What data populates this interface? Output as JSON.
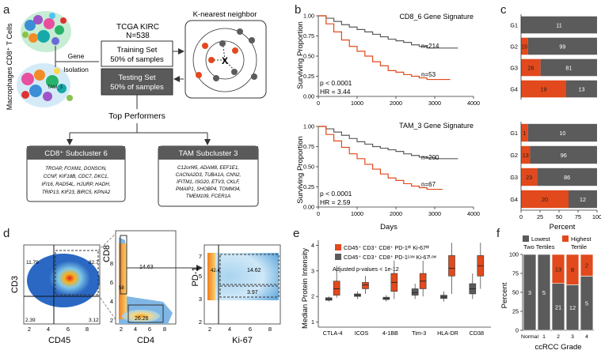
{
  "panel_letters": [
    "a",
    "b",
    "c",
    "d",
    "e",
    "f"
  ],
  "panel_a": {
    "cells_label": "CD8⁺ T Cells",
    "macrophages_label": "Macrophages",
    "tam3_label": "TAM_3",
    "gene_isolation": [
      "Gene",
      "Isolation"
    ],
    "dataset_title": "TCGA KIRC",
    "dataset_n": "N=538",
    "training": [
      "Training Set",
      "50% of samples"
    ],
    "testing": [
      "Testing Set",
      "50% of samples"
    ],
    "knn_title": "K-nearest neighbor",
    "knn_x": "X",
    "top_performers": "Top Performers",
    "cd8_box": {
      "title": "CD8⁺ Subcluster 6",
      "genes": [
        "TROAP, FOXM1, DONSON,",
        "CCNF, KIF18B, CDC7, DKC1,",
        "IFI16, RAD54L, HJURP, HADH,",
        "TRIP13, KIF23, BIRC5, KPNA2"
      ]
    },
    "tam_box": {
      "title": "TAM Subcluster 3",
      "genes": [
        "C12orf45, ADAM8, EEF1E1,",
        "CACNA2D3, TUBA1A, CNN2,",
        "IFITM1, ISG20, ETV3, CKLF,",
        "PMAIP1, SHOBP4, TOMM34,",
        "TMEM109, FCER1A"
      ]
    }
  },
  "panel_b": {
    "ylabel": "Surviving Proportion",
    "xlabel": "Days",
    "plots": [
      {
        "title": "CD8_6 Gene Signature",
        "n_high": "n=214",
        "n_low": "n=53",
        "p": "p < 0.0001",
        "hr": "HR = 3.44"
      },
      {
        "title": "TAM_3 Gene Signature",
        "n_high": "n=200",
        "n_low": "n=67",
        "p": "p < 0.0001",
        "hr": "HR = 2.59"
      }
    ]
  },
  "panel_c": {
    "xlabel": "Percent"
  },
  "panel_d": {
    "plot1": {
      "ylabel": "CD3",
      "xlabel": "CD45",
      "q_tl": "11.79",
      "q_tr": "82.7",
      "q_bl": "2.39",
      "q_br": "3.12"
    },
    "plot2": {
      "ylabel": "CD8",
      "xlabel": "CD4",
      "g_top": "14.63",
      "g_bot": "26.26",
      "g_left": "58"
    },
    "plot3": {
      "ylabel": "PD-1",
      "xlabel": "Ki-67",
      "g_top": "14.62",
      "g_bot": "3.97",
      "g_left": "42.4"
    }
  },
  "panel_e": {
    "ylabel": "Median Protein Intensity",
    "legend": [
      "CD45⁺ CD3⁺ CD8⁺ PD-1ᴴⁱ Ki-67ᴴⁱ",
      "CD45⁺ CD3⁺ CD8⁺ PD-1ᴸᵒʷ Ki-67ᴸᵒʷ"
    ],
    "adj": "Adjusted p-values < 1e-12"
  },
  "panel_f": {
    "legend": [
      "Lowest",
      "Two Tertiles",
      "Highest",
      "Tertile"
    ],
    "ylabel": "Percent",
    "xlabel": "ccRCC Grade"
  },
  "colors": {
    "orange": "#E2491C",
    "gray": "#5B5B5B",
    "light": "#8C8C8C"
  },
  "chart_data": [
    {
      "type": "line",
      "title": "CD8_6 Gene Signature",
      "xlabel": "Days",
      "ylabel": "Surviving Proportion",
      "xlim": [
        0,
        4000
      ],
      "ylim": [
        0,
        1
      ],
      "xticks": [
        0,
        1000,
        2000,
        3000,
        4000
      ],
      "yticks": [
        "0.00",
        "0.25",
        "0.50",
        "0.75",
        "1.00"
      ],
      "series": [
        {
          "name": "high survival (n=214)",
          "color": "#5B5B5B",
          "x": [
            0,
            200,
            400,
            600,
            800,
            1000,
            1200,
            1400,
            1600,
            1800,
            2000,
            2200,
            2400,
            2600,
            2800,
            3000,
            3200,
            3400,
            3600
          ],
          "y": [
            1.0,
            0.97,
            0.93,
            0.89,
            0.86,
            0.83,
            0.8,
            0.77,
            0.74,
            0.71,
            0.69,
            0.67,
            0.64,
            0.62,
            0.6,
            0.6,
            0.6,
            0.6,
            0.6
          ]
        },
        {
          "name": "low survival (n=53)",
          "color": "#E2491C",
          "x": [
            0,
            200,
            400,
            600,
            800,
            1000,
            1200,
            1400,
            1600,
            1800,
            2000,
            2200,
            2400,
            2600,
            2800,
            3000,
            3200,
            3400
          ],
          "y": [
            1.0,
            0.9,
            0.8,
            0.7,
            0.62,
            0.56,
            0.5,
            0.43,
            0.38,
            0.32,
            0.3,
            0.27,
            0.25,
            0.23,
            0.21,
            0.21,
            0.21,
            0.21
          ]
        }
      ]
    },
    {
      "type": "line",
      "title": "TAM_3 Gene Signature",
      "xlabel": "Days",
      "ylabel": "Surviving Proportion",
      "xlim": [
        0,
        4000
      ],
      "ylim": [
        0,
        1
      ],
      "xticks": [
        0,
        1000,
        2000,
        3000,
        4000
      ],
      "yticks": [
        "0.00",
        "0.25",
        "0.50",
        "0.75",
        "1.00"
      ],
      "series": [
        {
          "name": "high survival (n=200)",
          "color": "#5B5B5B",
          "x": [
            0,
            200,
            400,
            600,
            800,
            1000,
            1200,
            1400,
            1600,
            1800,
            2000,
            2200,
            2400,
            2600,
            2800,
            3000,
            3200,
            3400,
            3600
          ],
          "y": [
            1.0,
            0.97,
            0.93,
            0.89,
            0.85,
            0.81,
            0.78,
            0.75,
            0.73,
            0.71,
            0.69,
            0.66,
            0.64,
            0.62,
            0.61,
            0.6,
            0.6,
            0.6,
            0.6
          ]
        },
        {
          "name": "low survival (n=67)",
          "color": "#E2491C",
          "x": [
            0,
            200,
            400,
            600,
            800,
            1000,
            1200,
            1400,
            1600,
            1800,
            2000,
            2200,
            2400,
            2600,
            2800,
            3000,
            3200
          ],
          "y": [
            1.0,
            0.9,
            0.82,
            0.74,
            0.66,
            0.6,
            0.53,
            0.47,
            0.41,
            0.36,
            0.33,
            0.29,
            0.26,
            0.24,
            0.22,
            0.22,
            0.22
          ]
        }
      ]
    },
    {
      "type": "bar",
      "orientation": "horizontal",
      "stacked": true,
      "categories": [
        "G1",
        "G2",
        "G3",
        "G4"
      ],
      "xlabel": "Percent",
      "xlim": [
        0,
        100
      ],
      "xticks": [
        0,
        25,
        50,
        75,
        100
      ],
      "counts": {
        "orange": [
          0,
          10,
          28,
          19
        ],
        "gray": [
          11,
          99,
          81,
          13
        ]
      },
      "labels": {
        "orange": [
          "",
          "10",
          "28",
          "19"
        ],
        "gray": [
          "11",
          "99",
          "81",
          "13"
        ]
      }
    },
    {
      "type": "bar",
      "orientation": "horizontal",
      "stacked": true,
      "categories": [
        "G1",
        "G2",
        "G3",
        "G4"
      ],
      "xlabel": "Percent",
      "xlim": [
        0,
        100
      ],
      "xticks": [
        0,
        25,
        50,
        75,
        100
      ],
      "counts": {
        "orange": [
          1,
          13,
          23,
          20
        ],
        "gray": [
          10,
          96,
          86,
          12
        ]
      },
      "labels": {
        "orange": [
          "1",
          "13",
          "23",
          "20"
        ],
        "gray": [
          "10",
          "96",
          "86",
          "12"
        ]
      }
    },
    {
      "type": "box",
      "ylabel": "Median Protein Intensity",
      "categories": [
        "CTLA-4",
        "ICOS",
        "4-1BB",
        "Tim-3",
        "HLA-DR",
        "CD38"
      ],
      "ylim": [
        0.8,
        4.2
      ],
      "yticks": [
        1,
        2,
        3,
        4
      ],
      "series": [
        {
          "name": "PD-1 Hi Ki-67 Hi",
          "color": "#E2491C",
          "boxes": [
            [
              1.95,
              2.05,
              2.3,
              2.6,
              3.2
            ],
            [
              2.1,
              2.3,
              2.45,
              2.55,
              2.8
            ],
            [
              1.9,
              2.2,
              2.55,
              2.9,
              3.4
            ],
            [
              2.0,
              2.3,
              2.6,
              2.9,
              3.4
            ],
            [
              2.1,
              2.8,
              3.1,
              3.6,
              4.1
            ],
            [
              2.3,
              2.8,
              3.2,
              3.6,
              4.1
            ]
          ]
        },
        {
          "name": "PD-1 Low Ki-67 Low",
          "color": "#5B5B5B",
          "boxes": [
            [
              1.8,
              1.85,
              1.9,
              1.95,
              2.0
            ],
            [
              1.9,
              2.0,
              2.05,
              2.1,
              2.2
            ],
            [
              1.8,
              1.88,
              1.92,
              1.97,
              2.05
            ],
            [
              1.9,
              2.05,
              2.15,
              2.3,
              2.5
            ],
            [
              1.8,
              1.92,
              1.98,
              2.05,
              2.2
            ],
            [
              1.9,
              2.1,
              2.3,
              2.5,
              2.9
            ]
          ]
        }
      ]
    },
    {
      "type": "bar",
      "stacked": true,
      "xlabel": "ccRCC Grade",
      "ylabel": "Percent",
      "categories": [
        "Normal",
        "1",
        "2",
        "3",
        "4"
      ],
      "ylim": [
        0,
        100
      ],
      "yticks": [
        0,
        25,
        50,
        75,
        100
      ],
      "counts": {
        "gray": [
          3,
          5,
          21,
          12,
          5
        ],
        "orange": [
          0,
          0,
          13,
          8,
          2
        ]
      },
      "labels": {
        "gray": [
          "3",
          "5",
          "21",
          "12",
          "5"
        ],
        "orange": [
          "",
          "",
          "13",
          "8",
          "2"
        ]
      }
    }
  ]
}
